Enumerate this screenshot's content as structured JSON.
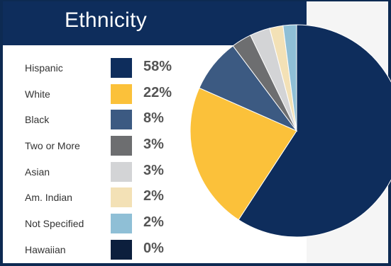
{
  "chart_data": {
    "type": "pie",
    "title": "Ethnicity",
    "slices": [
      {
        "label": "Hispanic",
        "value": 58,
        "display": "58%",
        "color": "#0e2d5c"
      },
      {
        "label": "White",
        "value": 22,
        "display": "22%",
        "color": "#fbc13a"
      },
      {
        "label": "Black",
        "value": 8,
        "display": "8%",
        "color": "#3c5a82"
      },
      {
        "label": "Two or More",
        "value": 3,
        "display": "3%",
        "color": "#6d6e70"
      },
      {
        "label": "Asian",
        "value": 3,
        "display": "3%",
        "color": "#d3d4d6"
      },
      {
        "label": "Am. Indian",
        "value": 2,
        "display": "2%",
        "color": "#f3e1b6"
      },
      {
        "label": "Not Specified",
        "value": 2,
        "display": "2%",
        "color": "#8fbfd6"
      },
      {
        "label": "Hawaiian",
        "value": 0,
        "display": "0%",
        "color": "#0c1f3d"
      }
    ]
  }
}
